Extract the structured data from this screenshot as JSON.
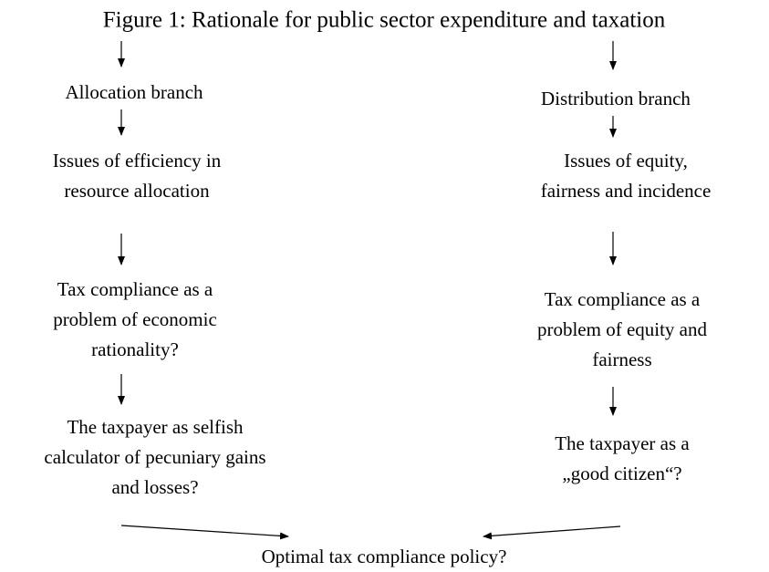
{
  "title": "Figure 1: Rationale for public sector expenditure and taxation",
  "left": {
    "branch": "Allocation branch",
    "nodes": [
      [
        "Issues of efficiency in",
        "resource allocation"
      ],
      [
        "Tax compliance as a",
        "problem of economic",
        "rationality?"
      ],
      [
        "The taxpayer as selfish",
        "calculator of pecuniary gains",
        "and losses?"
      ]
    ]
  },
  "right": {
    "branch": "Distribution branch",
    "nodes": [
      [
        "Issues of equity,",
        "fairness and incidence"
      ],
      [
        "Tax compliance as a",
        "problem of equity and",
        "fairness"
      ],
      [
        "The taxpayer as a",
        "„good citizen“?"
      ]
    ]
  },
  "result": "Optimal tax compliance policy?"
}
